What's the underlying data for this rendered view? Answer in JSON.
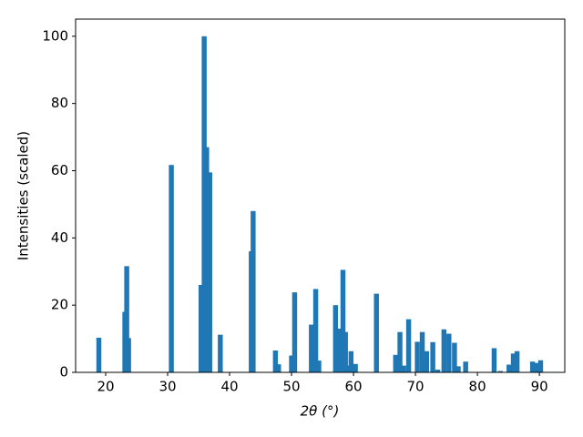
{
  "chart_data": {
    "type": "bar",
    "x_label": "2θ (°)",
    "y_label": "Intensities (scaled)",
    "color": "#1f77b4",
    "x": [
      18.9,
      23.1,
      23.4,
      23.7,
      30.6,
      35.4,
      35.9,
      36.3,
      36.8,
      38.5,
      43.5,
      43.8,
      47.4,
      47.9,
      50.0,
      50.5,
      53.2,
      53.9,
      54.4,
      57.1,
      57.6,
      58.3,
      58.7,
      59.3,
      59.6,
      60.3,
      63.7,
      66.8,
      67.5,
      68.1,
      68.9,
      70.3,
      71.1,
      71.8,
      72.8,
      73.6,
      74.6,
      75.4,
      76.3,
      76.9,
      78.1,
      82.7,
      83.7,
      85.1,
      85.8,
      86.4,
      88.9,
      89.6,
      90.2
    ],
    "values": [
      10.3,
      18,
      31.6,
      10.2,
      61.7,
      26,
      100,
      67,
      59.5,
      11.2,
      36,
      48,
      6.5,
      2.4,
      5,
      23.8,
      14.2,
      24.8,
      3.5,
      20,
      13,
      30.5,
      12,
      2,
      6.3,
      2.5,
      23.4,
      5.2,
      12,
      2,
      15.8,
      9.1,
      12,
      6.3,
      9,
      0.8,
      12.8,
      11.5,
      8.8,
      1.8,
      3.2,
      7.2,
      0.4,
      2.3,
      5.6,
      6.3,
      3.2,
      2.8,
      3.6
    ],
    "xlim": [
      15.15,
      94.1
    ],
    "ylim": [
      0,
      105.1
    ],
    "xticks": [
      20,
      30,
      40,
      50,
      60,
      70,
      80,
      90
    ],
    "yticks": [
      0,
      20,
      40,
      60,
      80,
      100
    ]
  }
}
